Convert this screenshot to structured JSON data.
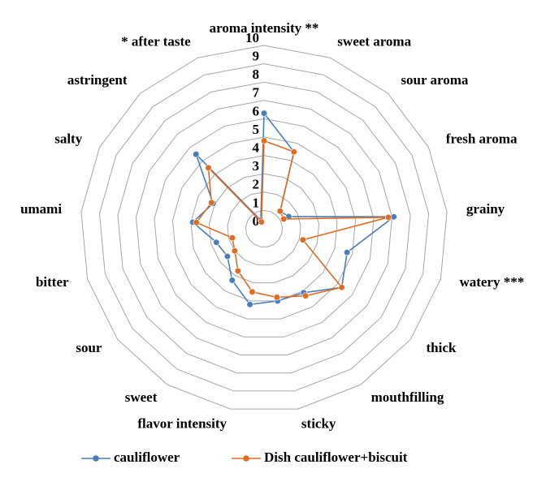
{
  "chart_data": {
    "type": "radar",
    "categories": [
      "aroma intensity **",
      "sweet aroma",
      "sour aroma",
      "fresh aroma",
      "grainy",
      "watery ***",
      "thick",
      "mouthfilling",
      "sticky",
      "flavor intensity",
      "sweet",
      "sour",
      "bitter",
      "umami",
      "salty",
      "astringent",
      "* after taste"
    ],
    "series": [
      {
        "name": "cauliflower",
        "color": "#4a7ebb",
        "values": [
          6.3,
          4.5,
          1.3,
          1.5,
          7.1,
          4.7,
          5.3,
          4.1,
          4.0,
          4.2,
          3.3,
          2.5,
          2.7,
          3.9,
          3.1,
          5.5,
          0.5
        ]
      },
      {
        "name": "Dish cauliflower+biscuit",
        "color": "#e06c22",
        "values": [
          4.8,
          4.5,
          1.3,
          1.2,
          6.8,
          2.2,
          5.3,
          4.3,
          3.8,
          3.5,
          2.7,
          2.0,
          1.8,
          3.7,
          3.2,
          4.5,
          0.4
        ]
      }
    ],
    "ylim": [
      0,
      10
    ],
    "yticks": [
      0,
      1,
      2,
      3,
      4,
      5,
      6,
      7,
      8,
      9,
      10
    ],
    "grid": true,
    "legend": "bottom"
  }
}
